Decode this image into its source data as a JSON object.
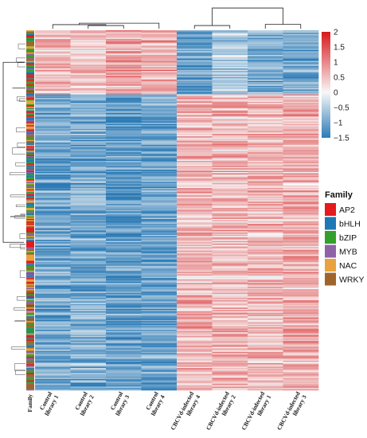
{
  "chart_data": {
    "type": "heatmap",
    "title": "",
    "columns": [
      "Control library 1",
      "Control library 2",
      "Control library 3",
      "Control library 4",
      "CBCVd-infected library 4",
      "CBCVd-infected library 2",
      "CBCVd-infected library 1",
      "CBCVd-infected library 3"
    ],
    "annotation_label": "Family",
    "annotation_title": "Family",
    "families": [
      {
        "name": "AP2",
        "color": "#e41a1c"
      },
      {
        "name": "bHLH",
        "color": "#1f78b4"
      },
      {
        "name": "bZIP",
        "color": "#33a02c"
      },
      {
        "name": "MYB",
        "color": "#8e63a6"
      },
      {
        "name": "NAC",
        "color": "#e8a33c"
      },
      {
        "name": "WRKY",
        "color": "#a0642a"
      }
    ],
    "colorbar": {
      "min": -1.5,
      "max": 2,
      "ticks": [
        "2",
        "1.5",
        "1",
        "0.5",
        "0",
        "−0.5",
        "−1",
        "−1.5"
      ],
      "tick_values": [
        2,
        1.5,
        1,
        0.5,
        0,
        -0.5,
        -1,
        -1.5
      ],
      "low_color": "#2c7bb6",
      "mid_color": "#f7f7f7",
      "high_color": "#d7191c"
    },
    "row_clusters": [
      {
        "rows": 52,
        "pattern": [
          0.55,
          0.45,
          0.75,
          0.7,
          -1.1,
          -0.6,
          -0.9,
          -1.0
        ]
      },
      {
        "rows": 240,
        "pattern": [
          -1.0,
          -0.95,
          -1.1,
          -1.05,
          0.55,
          0.55,
          0.5,
          0.65
        ]
      }
    ],
    "column_dendrogram": [
      [
        1,
        2,
        0.55
      ],
      [
        0,
        9,
        0.7
      ],
      [
        3,
        10,
        0.95
      ],
      [
        4,
        5,
        0.55
      ],
      [
        6,
        7,
        0.75
      ],
      [
        12,
        13,
        0.9
      ],
      [
        11,
        14,
        3.6
      ]
    ]
  }
}
